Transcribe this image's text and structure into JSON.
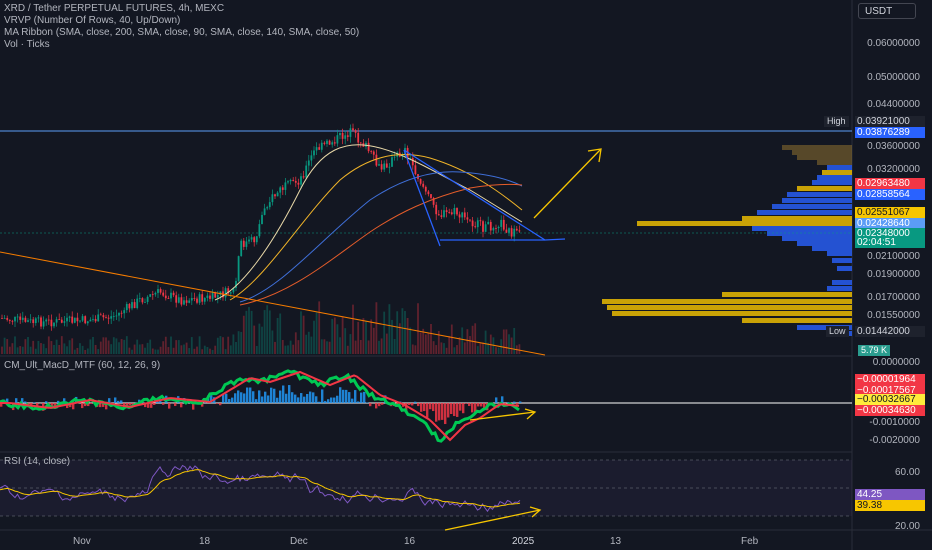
{
  "header": {
    "title": "XRD / Tether PERPETUAL FUTURES, 4h, MEXC",
    "indicators": [
      "VRVP (Number Of Rows, 40, Up/Down)",
      "MA Ribbon (SMA, close, 200, SMA, close, 90, SMA, close, 140, SMA, close, 50)",
      "Vol · Ticks"
    ],
    "currency": "USDT"
  },
  "price_axis": {
    "labels": [
      "0.06000000",
      "0.05000000",
      "0.04400000",
      "0.03600000",
      "0.03200000",
      "0.02100000",
      "0.01900000",
      "0.01700000",
      "0.01550000"
    ],
    "high_label": "High",
    "low_label": "Low",
    "tags": [
      {
        "text": "0.03921000",
        "bg": "#1e222d",
        "fg": "#d1d4dc"
      },
      {
        "text": "0.03876289",
        "bg": "#2962ff",
        "fg": "#ffffff"
      },
      {
        "text": "0.02963480",
        "bg": "#f23645",
        "fg": "#ffffff"
      },
      {
        "text": "0.02858564",
        "bg": "#2962ff",
        "fg": "#ffffff"
      },
      {
        "text": "0.02551067",
        "bg": "#f7c600",
        "fg": "#131722"
      },
      {
        "text": "0.02428640",
        "bg": "#5b9cf6",
        "fg": "#ffffff"
      },
      {
        "text": "0.02348000",
        "bg": "#089981",
        "fg": "#ffffff"
      },
      {
        "text": "02:04:51",
        "bg": "#089981",
        "fg": "#ffffff"
      },
      {
        "text": "0.01442000",
        "bg": "#1e222d",
        "fg": "#d1d4dc"
      }
    ],
    "volume_badge": "5.79 K"
  },
  "macd": {
    "label": "CM_Ult_MacD_MTF (60, 12, 26, 9)",
    "axis": [
      "0.0000000",
      "-0.0010000",
      "-0.0020000"
    ],
    "tags": [
      {
        "text": "−0.00001964",
        "bg": "#f23645",
        "fg": "#ffffff"
      },
      {
        "text": "−0.00017567",
        "bg": "#f23645",
        "fg": "#ffffff"
      },
      {
        "text": "−0.00032667",
        "bg": "#ffeb3b",
        "fg": "#131722"
      },
      {
        "text": "−0.00034630",
        "bg": "#f23645",
        "fg": "#ffffff"
      }
    ]
  },
  "rsi": {
    "label": "RSI (14, close)",
    "axis": [
      "60.00",
      "20.00"
    ],
    "tags": [
      {
        "text": "44.25",
        "bg": "#7e57c2",
        "fg": "#ffffff"
      },
      {
        "text": "39.38",
        "bg": "#f7c600",
        "fg": "#131722"
      }
    ]
  },
  "time_axis": [
    "Nov",
    "18",
    "Dec",
    "16",
    "2025",
    "13",
    "Feb"
  ],
  "colors": {
    "background": "#131722",
    "up": "#089981",
    "down": "#f23645",
    "annotation": "#f7c600",
    "trendline": "#2962ff"
  }
}
